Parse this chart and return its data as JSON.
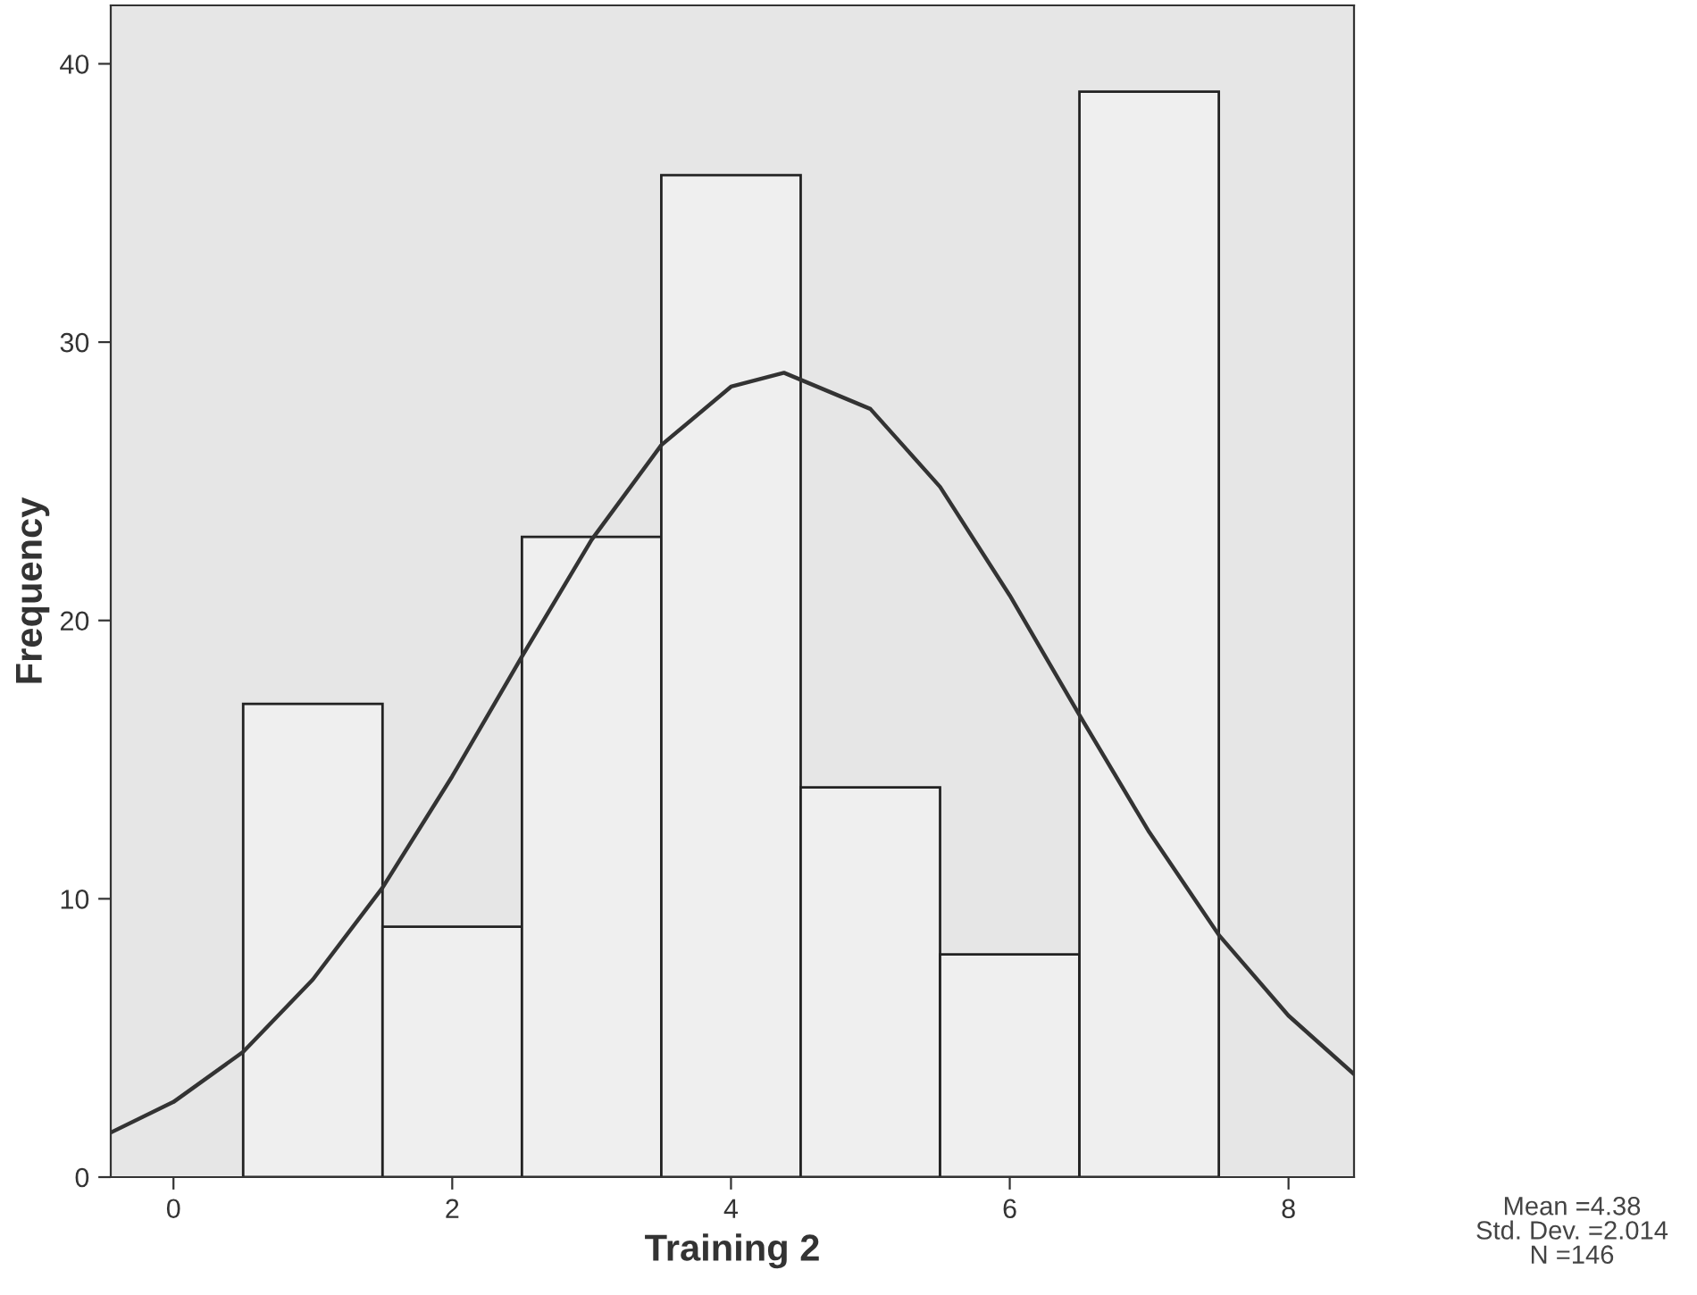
{
  "chart_data": {
    "type": "histogram",
    "xlabel": "Training 2",
    "ylabel": "Frequency",
    "bins": [
      0.5,
      1.5,
      2.5,
      3.5,
      4.5,
      5.5,
      6.5,
      7.5
    ],
    "values": [
      17,
      9,
      23,
      36,
      14,
      8,
      39
    ],
    "color": "#efefef",
    "series": [
      {
        "type": "line",
        "color": "#333333",
        "x": [
          -0.45,
          0,
          0.5,
          1,
          1.5,
          2,
          2.5,
          3,
          3.5,
          4,
          4.38,
          5,
          5.5,
          6,
          6.5,
          7,
          7.5,
          8,
          8.47
        ],
        "values": [
          1.6,
          2.7,
          4.5,
          7.1,
          10.4,
          14.4,
          18.7,
          22.9,
          26.3,
          28.4,
          28.9,
          27.6,
          24.8,
          20.9,
          16.6,
          12.4,
          8.7,
          5.8,
          3.7
        ]
      }
    ],
    "xlim": [
      -0.45,
      8.47
    ],
    "ylim": [
      0,
      42.1
    ],
    "xticks": [
      0,
      2,
      4,
      6,
      8
    ],
    "yticks": [
      0,
      10,
      20,
      30,
      40
    ],
    "grid": false,
    "annotations": [
      "Mean =4.38\nStd. Dev. =2.014\nN =146"
    ]
  }
}
